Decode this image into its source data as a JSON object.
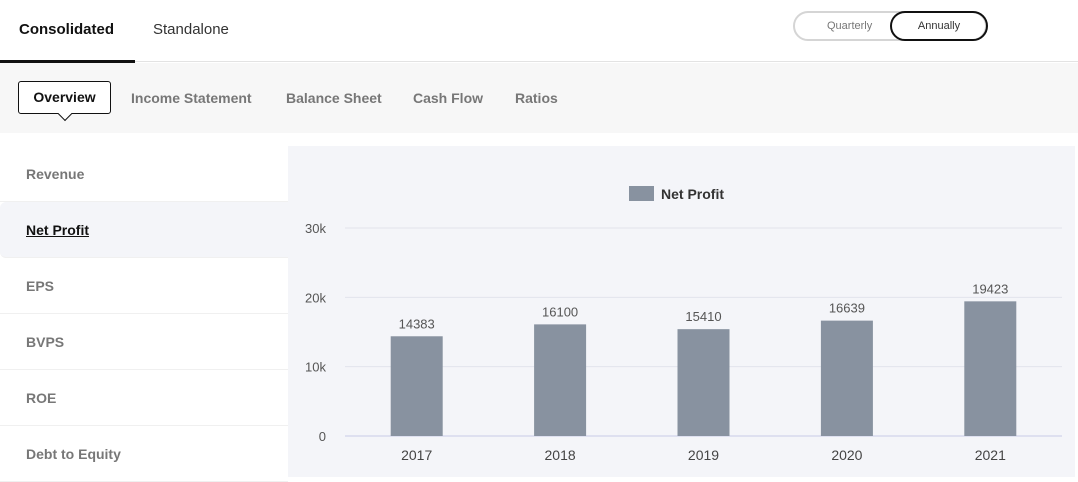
{
  "top_tabs": [
    {
      "label": "Consolidated",
      "active": true
    },
    {
      "label": "Standalone",
      "active": false
    }
  ],
  "period_toggle": {
    "options": [
      "Quarterly",
      "Annually"
    ],
    "selected": "Annually"
  },
  "sub_tabs": [
    {
      "label": "Overview",
      "active": true
    },
    {
      "label": "Income Statement"
    },
    {
      "label": "Balance Sheet"
    },
    {
      "label": "Cash Flow"
    },
    {
      "label": "Ratios"
    }
  ],
  "sidebar": {
    "items": [
      {
        "label": "Revenue"
      },
      {
        "label": "Net Profit",
        "active": true
      },
      {
        "label": "EPS"
      },
      {
        "label": "BVPS"
      },
      {
        "label": "ROE"
      },
      {
        "label": "Debt to Equity"
      }
    ]
  },
  "chart_data": {
    "type": "bar",
    "categories": [
      "2017",
      "2018",
      "2019",
      "2020",
      "2021"
    ],
    "series": [
      {
        "name": "Net Profit",
        "values": [
          14383,
          16100,
          15410,
          16639,
          19423
        ],
        "color": "#8892a0"
      }
    ],
    "yticks": [
      "0",
      "10k",
      "20k",
      "30k"
    ],
    "ylim": [
      0,
      30000
    ],
    "legend": "top-center",
    "grid": true
  }
}
